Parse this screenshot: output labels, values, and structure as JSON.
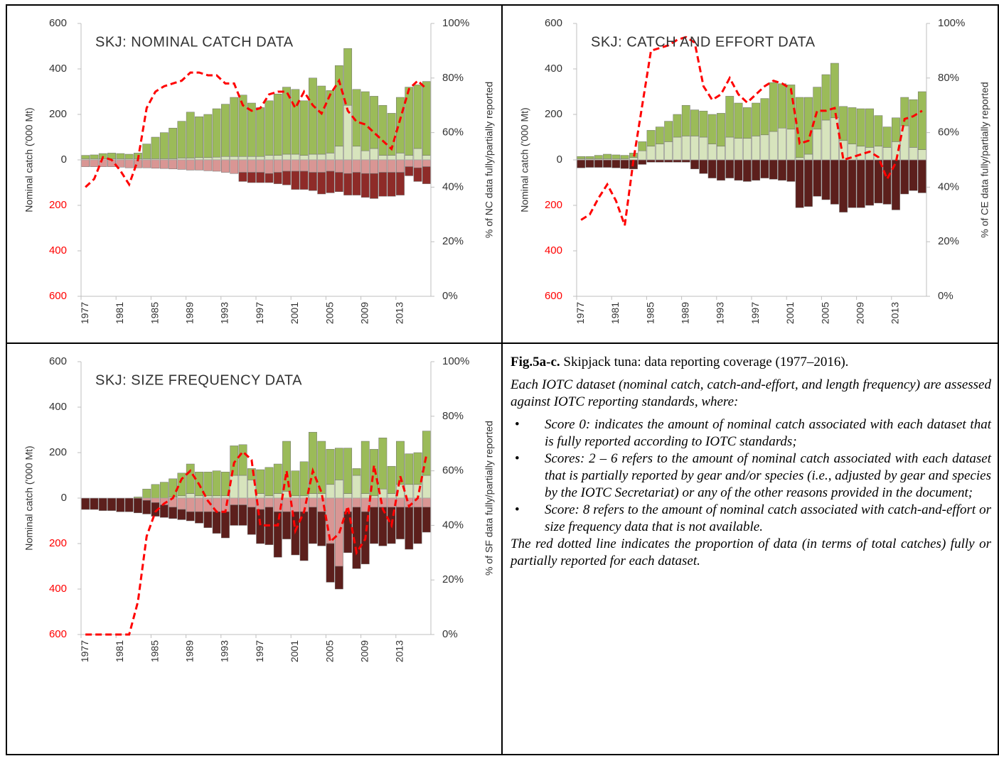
{
  "chart_data": [
    {
      "type": "bar",
      "title": "SKJ: NOMINAL CATCH DATA",
      "y_label": "Nominal catch ('000 Mt)",
      "y2_label": "% of NC data fully/partially reported",
      "categories": [
        "1977",
        null,
        null,
        null,
        "1981",
        null,
        null,
        null,
        "1985",
        null,
        null,
        null,
        "1989",
        null,
        null,
        null,
        "1993",
        null,
        null,
        null,
        "1997",
        null,
        null,
        null,
        "2001",
        null,
        null,
        null,
        "2005",
        null,
        null,
        null,
        "2009",
        null,
        null,
        null,
        "2013",
        null,
        null,
        null
      ],
      "ylim": [
        -600,
        600
      ],
      "yticks": [
        600,
        400,
        200,
        0,
        {
          "value": -200,
          "label": "200"
        },
        {
          "value": -400,
          "label": "400"
        },
        {
          "value": -600,
          "label": "600"
        }
      ],
      "y2lim": [
        0,
        100
      ],
      "y2ticks": [
        {
          "value": 100,
          "label": "100%"
        },
        {
          "value": 80,
          "label": "80%"
        },
        {
          "value": 60,
          "label": "60%"
        },
        {
          "value": 40,
          "label": "40%"
        },
        {
          "value": 20,
          "label": "20%"
        },
        {
          "value": 0,
          "label": "0%"
        }
      ],
      "negative_tick_color": "#ff0000",
      "series": [
        {
          "color": "#d7e4bd",
          "values": [
            5,
            5,
            5,
            5,
            5,
            5,
            5,
            5,
            5,
            5,
            5,
            8,
            8,
            10,
            10,
            12,
            15,
            15,
            15,
            15,
            15,
            20,
            20,
            25,
            25,
            20,
            25,
            25,
            30,
            60,
            240,
            60,
            40,
            50,
            20,
            20,
            30,
            20,
            50,
            20
          ]
        },
        {
          "color": "#9bbb59",
          "values": [
            15,
            17,
            23,
            25,
            23,
            20,
            25,
            65,
            95,
            115,
            135,
            162,
            202,
            180,
            190,
            213,
            230,
            260,
            270,
            235,
            215,
            240,
            270,
            295,
            285,
            240,
            335,
            300,
            275,
            355,
            250,
            250,
            260,
            230,
            220,
            185,
            245,
            300,
            280,
            325
          ]
        },
        {
          "color": "#d99694",
          "values": [
            -30,
            -30,
            -30,
            -30,
            -32,
            -35,
            -35,
            -35,
            -37,
            -38,
            -40,
            -42,
            -45,
            -45,
            -48,
            -50,
            -55,
            -60,
            -55,
            -55,
            -55,
            -60,
            -55,
            -50,
            -50,
            -50,
            -55,
            -55,
            -50,
            -55,
            -60,
            -55,
            -60,
            -60,
            -55,
            -55,
            -55,
            -30,
            -35,
            -30
          ]
        },
        {
          "color": "#8e2b28",
          "values": [
            0,
            0,
            0,
            0,
            0,
            0,
            0,
            0,
            0,
            0,
            0,
            0,
            0,
            0,
            0,
            0,
            0,
            0,
            -40,
            -45,
            -45,
            -40,
            -50,
            -60,
            -80,
            -80,
            -80,
            -95,
            -95,
            -85,
            -95,
            -100,
            -105,
            -110,
            -105,
            -105,
            -100,
            -40,
            -60,
            -75
          ]
        },
        {
          "color": "#ff0000",
          "axis": "y2",
          "line_style": "dashed",
          "values": [
            40,
            43,
            51,
            50,
            46,
            41,
            50,
            69,
            75,
            77,
            78,
            79,
            82,
            82,
            81,
            81,
            78,
            78,
            70,
            68,
            69,
            74,
            75,
            75,
            69,
            75,
            70,
            67,
            74,
            79,
            68,
            64,
            63,
            60,
            57,
            54,
            65,
            76,
            79,
            76
          ]
        }
      ]
    },
    {
      "type": "bar",
      "title": "SKJ: CATCH AND EFFORT DATA",
      "y_label": "Nominal catch ('000 Mt)",
      "y2_label": "% of CE data fully/partially reported",
      "categories": [
        "1977",
        null,
        null,
        null,
        "1981",
        null,
        null,
        null,
        "1985",
        null,
        null,
        null,
        "1989",
        null,
        null,
        null,
        "1993",
        null,
        null,
        null,
        "1997",
        null,
        null,
        null,
        "2001",
        null,
        null,
        null,
        "2005",
        null,
        null,
        null,
        "2009",
        null,
        null,
        null,
        "2013",
        null,
        null,
        null
      ],
      "ylim": [
        -600,
        600
      ],
      "yticks": [
        600,
        400,
        200,
        0,
        {
          "value": -200,
          "label": "200"
        },
        {
          "value": -400,
          "label": "400"
        },
        {
          "value": -600,
          "label": "600"
        }
      ],
      "y2lim": [
        0,
        100
      ],
      "y2ticks": [
        {
          "value": 100,
          "label": "100%"
        },
        {
          "value": 80,
          "label": "80%"
        },
        {
          "value": 60,
          "label": "60%"
        },
        {
          "value": 40,
          "label": "40%"
        },
        {
          "value": 20,
          "label": "20%"
        },
        {
          "value": 0,
          "label": "0%"
        }
      ],
      "negative_tick_color": "#ff0000",
      "series": [
        {
          "color": "#d7e4bd",
          "values": [
            5,
            5,
            5,
            5,
            5,
            5,
            10,
            40,
            60,
            70,
            80,
            100,
            105,
            105,
            100,
            70,
            60,
            100,
            95,
            95,
            105,
            110,
            125,
            140,
            135,
            10,
            25,
            135,
            175,
            185,
            85,
            70,
            60,
            55,
            60,
            55,
            80,
            150,
            55,
            45
          ]
        },
        {
          "color": "#9bbb59",
          "values": [
            10,
            10,
            15,
            20,
            17,
            15,
            20,
            40,
            70,
            75,
            90,
            100,
            135,
            115,
            115,
            130,
            145,
            180,
            155,
            135,
            145,
            160,
            215,
            195,
            195,
            265,
            250,
            185,
            200,
            240,
            150,
            160,
            165,
            170,
            135,
            90,
            105,
            125,
            210,
            255
          ]
        },
        {
          "color": "#5c1f1c",
          "values": [
            -35,
            -33,
            -33,
            -33,
            -35,
            -38,
            -40,
            -20,
            -10,
            -10,
            -10,
            -10,
            -10,
            -40,
            -60,
            -80,
            -90,
            -80,
            -90,
            -95,
            -90,
            -80,
            -85,
            -90,
            -95,
            -210,
            -205,
            -160,
            -175,
            -195,
            -230,
            -210,
            -210,
            -200,
            -190,
            -195,
            -220,
            -150,
            -135,
            -145
          ]
        },
        {
          "color": "#ff0000",
          "axis": "y2",
          "line_style": "dashed",
          "values": [
            28,
            30,
            36,
            41,
            35,
            26,
            50,
            70,
            90,
            91,
            92,
            94,
            95,
            93,
            77,
            72,
            74,
            80,
            74,
            71,
            74,
            77,
            79,
            78,
            76,
            56,
            57,
            68,
            68,
            69,
            50,
            51,
            52,
            53,
            51,
            43,
            49,
            65,
            66,
            68
          ]
        }
      ]
    },
    {
      "type": "bar",
      "title": "SKJ: SIZE FREQUENCY DATA",
      "y_label": "Nominal catch ('000 Mt)",
      "y2_label": "% of SF data fully/partially reported",
      "categories": [
        "1977",
        null,
        null,
        null,
        "1981",
        null,
        null,
        null,
        "1985",
        null,
        null,
        null,
        "1989",
        null,
        null,
        null,
        "1993",
        null,
        null,
        null,
        "1997",
        null,
        null,
        null,
        "2001",
        null,
        null,
        null,
        "2005",
        null,
        null,
        null,
        "2009",
        null,
        null,
        null,
        "2013",
        null,
        null,
        null
      ],
      "ylim": [
        -600,
        600
      ],
      "yticks": [
        600,
        400,
        200,
        0,
        {
          "value": -200,
          "label": "200"
        },
        {
          "value": -400,
          "label": "400"
        },
        {
          "value": -600,
          "label": "600"
        }
      ],
      "y2lim": [
        0,
        100
      ],
      "y2ticks": [
        {
          "value": 100,
          "label": "100%"
        },
        {
          "value": 80,
          "label": "80%"
        },
        {
          "value": 60,
          "label": "60%"
        },
        {
          "value": 40,
          "label": "40%"
        },
        {
          "value": 20,
          "label": "20%"
        },
        {
          "value": 0,
          "label": "0%"
        }
      ],
      "negative_tick_color": "#ff0000",
      "series": [
        {
          "color": "#d7e4bd",
          "values": [
            0,
            0,
            0,
            0,
            0,
            0,
            0,
            0,
            0,
            0,
            5,
            10,
            20,
            10,
            10,
            10,
            10,
            100,
            100,
            80,
            20,
            10,
            20,
            30,
            10,
            10,
            20,
            20,
            60,
            80,
            20,
            100,
            20,
            10,
            40,
            20,
            60,
            60,
            60,
            100
          ]
        },
        {
          "color": "#9bbb59",
          "values": [
            0,
            0,
            0,
            0,
            0,
            0,
            5,
            40,
            60,
            70,
            80,
            100,
            130,
            105,
            105,
            110,
            105,
            130,
            135,
            50,
            105,
            125,
            130,
            220,
            110,
            150,
            270,
            230,
            155,
            140,
            200,
            30,
            230,
            205,
            225,
            120,
            190,
            135,
            140,
            195
          ]
        },
        {
          "color": "#d99694",
          "values": [
            0,
            0,
            0,
            0,
            0,
            0,
            0,
            -10,
            -20,
            -30,
            -40,
            -50,
            -60,
            -60,
            -60,
            -60,
            -60,
            -30,
            -30,
            -40,
            -50,
            -40,
            -60,
            -60,
            -60,
            -60,
            -40,
            -60,
            -200,
            -300,
            -60,
            -40,
            -60,
            -40,
            -40,
            -40,
            -40,
            -40,
            -40,
            -40
          ]
        },
        {
          "color": "#5c1f1c",
          "values": [
            -50,
            -50,
            -55,
            -55,
            -60,
            -60,
            -65,
            -60,
            -60,
            -55,
            -50,
            -45,
            -40,
            -50,
            -70,
            -95,
            -115,
            -90,
            -90,
            -120,
            -150,
            -165,
            -200,
            -120,
            -190,
            -215,
            -160,
            -150,
            -170,
            -100,
            -180,
            -270,
            -230,
            -160,
            -170,
            -160,
            -140,
            -185,
            -160,
            -110
          ]
        },
        {
          "color": "#ff0000",
          "axis": "y2",
          "line_style": "dashed",
          "values": [
            0,
            0,
            0,
            0,
            0,
            0,
            12,
            36,
            45,
            48,
            50,
            57,
            60,
            55,
            49,
            45,
            45,
            63,
            67,
            64,
            40,
            40,
            40,
            60,
            38,
            45,
            60,
            52,
            34,
            37,
            47,
            30,
            35,
            62,
            46,
            40,
            58,
            47,
            50,
            66
          ]
        }
      ]
    }
  ],
  "caption": {
    "label": "Fig.5a-c.",
    "title": "Skipjack tuna: data reporting coverage (1977–2016).",
    "intro": "Each IOTC dataset (nominal catch, catch-and-effort, and length frequency) are assessed against IOTC reporting standards, where:",
    "bullets": [
      "Score 0: indicates the amount of nominal catch associated with each dataset that is fully reported according to IOTC standards;",
      "Scores: 2 – 6 refers to the amount of nominal catch associated with each dataset that is partially reported by gear and/or species (i.e., adjusted by gear and species by the IOTC Secretariat) or any of the other reasons provided in the document;",
      "Score: 8 refers to the amount of nominal catch associated with catch-and-effort or size frequency data that is not available."
    ],
    "closing": "The red dotted line indicates the proportion of data (in terms of total catches) fully or partially reported for each dataset."
  }
}
